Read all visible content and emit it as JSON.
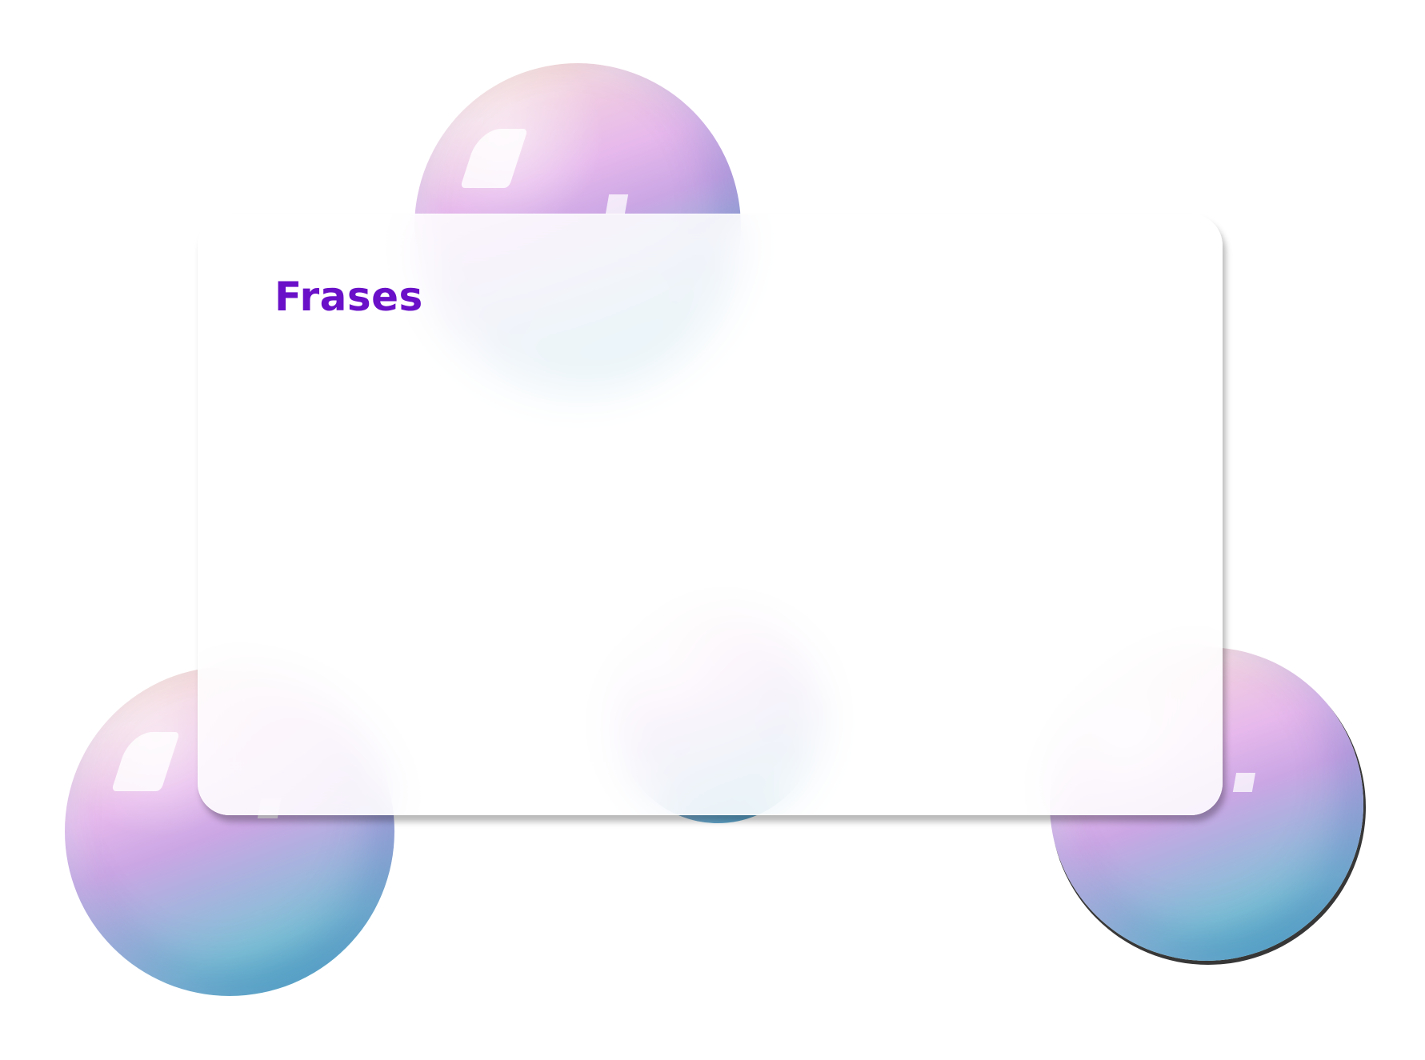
{
  "card": {
    "title": "Frases"
  },
  "colors": {
    "title": "#6a10c8",
    "background": "#ffffff",
    "sphere_top": "#f6c9a4",
    "sphere_mid": "#e6b8ec",
    "sphere_bottom": "#3db6c4"
  },
  "decorations": [
    "sphere-icon",
    "sphere-icon",
    "sphere-icon",
    "sphere-icon"
  ]
}
